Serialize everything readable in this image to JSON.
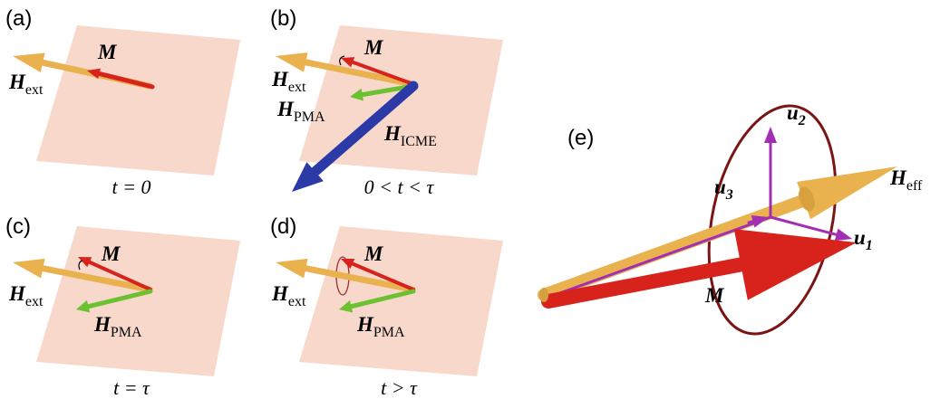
{
  "panels": [
    {
      "label": "(a)",
      "caption": "t = 0",
      "vectors": [
        {
          "symbol": "M"
        },
        {
          "symbol": "H",
          "sub": "ext"
        }
      ]
    },
    {
      "label": "(b)",
      "caption": "0 < t < τ",
      "vectors": [
        {
          "symbol": "M"
        },
        {
          "symbol": "H",
          "sub": "ext"
        },
        {
          "symbol": "H",
          "sub": "PMA"
        },
        {
          "symbol": "H",
          "sub": "ICME"
        }
      ]
    },
    {
      "label": "(c)",
      "caption": "t = τ",
      "vectors": [
        {
          "symbol": "M"
        },
        {
          "symbol": "H",
          "sub": "ext"
        },
        {
          "symbol": "H",
          "sub": "PMA"
        }
      ]
    },
    {
      "label": "(d)",
      "caption": "t > τ",
      "vectors": [
        {
          "symbol": "M"
        },
        {
          "symbol": "H",
          "sub": "ext"
        },
        {
          "symbol": "H",
          "sub": "PMA"
        }
      ]
    },
    {
      "label": "(e)",
      "vectors": [
        {
          "symbol": "u",
          "sub": "2"
        },
        {
          "symbol": "u",
          "sub": "3"
        },
        {
          "symbol": "u",
          "sub": "1"
        },
        {
          "symbol": "H",
          "sub": "eff"
        },
        {
          "symbol": "M"
        }
      ]
    }
  ]
}
